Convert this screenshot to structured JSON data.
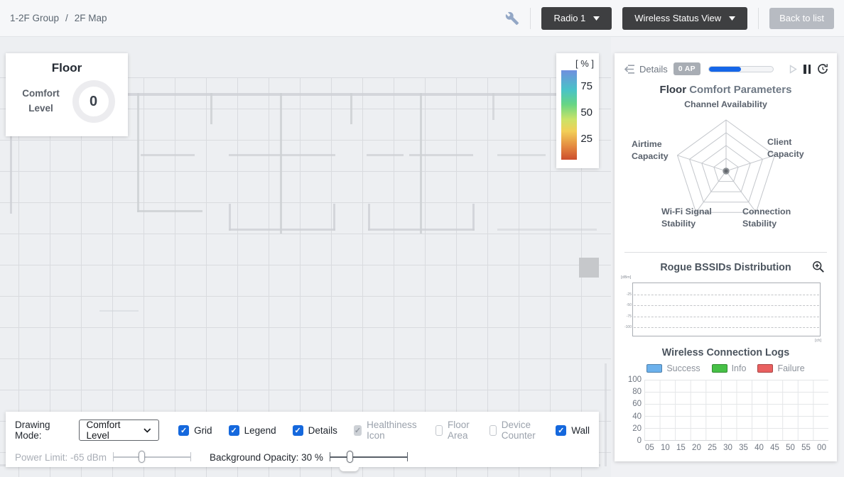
{
  "header": {
    "breadcrumb": {
      "items": [
        {
          "label": "1-2F Group"
        },
        {
          "label": "2F Map"
        }
      ],
      "separator": "/"
    },
    "radio_dropdown": {
      "value": "Radio 1"
    },
    "view_dropdown": {
      "value": "Wireless Status View"
    },
    "back_button": "Back to list"
  },
  "floor_card": {
    "title": "Floor",
    "metric_label": "Comfort Level",
    "value": "0"
  },
  "color_legend": {
    "unit": "[ % ]",
    "ticks": [
      "75",
      "50",
      "25"
    ],
    "gradient_top_to_bottom": [
      "#6f8fdf",
      "#49c3c7",
      "#66d584",
      "#cbe367",
      "#f2cf57",
      "#e3863f",
      "#cc4e2e"
    ]
  },
  "details_panel": {
    "header": {
      "back_label": "Details",
      "ap_badge": "0 AP",
      "progress_percent": 50,
      "accent_color": "#1566e8"
    },
    "comfort_title": {
      "prefix": "Floor",
      "rest": "Comfort Parameters"
    },
    "radar_axes": [
      "Channel Availability",
      "Client Capacity",
      "Connection Stability",
      "Wi-Fi Signal Stability",
      "Airtime Capacity"
    ],
    "rogue_section": {
      "title": "Rogue BSSIDs Distribution",
      "y_axis_unit": "[dBm]",
      "x_axis_unit": "[ch]",
      "y_ticks": [
        "-25",
        "-50",
        "-75",
        "-100"
      ]
    },
    "logs_section": {
      "title": "Wireless Connection Logs",
      "legend": [
        {
          "label": "Success",
          "color": "#6cb1ec"
        },
        {
          "label": "Info",
          "color": "#46c046"
        },
        {
          "label": "Failure",
          "color": "#e96060"
        }
      ],
      "y_ticks": [
        "100",
        "80",
        "60",
        "40",
        "20",
        "0"
      ],
      "x_ticks": [
        "05",
        "10",
        "15",
        "20",
        "25",
        "30",
        "35",
        "40",
        "45",
        "50",
        "55",
        "00"
      ]
    }
  },
  "toolbar": {
    "drawing_mode_label": "Drawing Mode:",
    "drawing_mode_value": "Comfort Level",
    "checkboxes": [
      {
        "label": "Grid",
        "checked": true,
        "enabled": true
      },
      {
        "label": "Legend",
        "checked": true,
        "enabled": true
      },
      {
        "label": "Details",
        "checked": true,
        "enabled": true
      },
      {
        "label": "Healthiness Icon",
        "checked": true,
        "enabled": false
      },
      {
        "label": "Floor Area",
        "checked": false,
        "enabled": false
      },
      {
        "label": "Device Counter",
        "checked": false,
        "enabled": false
      },
      {
        "label": "Wall",
        "checked": true,
        "enabled": true
      }
    ],
    "power_limit_label": "Power Limit: -65 dBm",
    "power_limit_value": "-65 dBm",
    "power_limit_enabled": false,
    "power_limit_thumb_percent": 33,
    "background_opacity_label": "Background Opacity: 30 %",
    "background_opacity_value": "30 %",
    "background_opacity_thumb_percent": 22
  },
  "chart_data": [
    {
      "type": "radar",
      "title": "Floor Comfort Parameters",
      "axes": [
        "Channel Availability",
        "Client Capacity",
        "Connection Stability",
        "Wi-Fi Signal Stability",
        "Airtime Capacity"
      ],
      "values": [
        0,
        0,
        0,
        0,
        0
      ],
      "rings": 4
    },
    {
      "type": "scatter",
      "title": "Rogue BSSIDs Distribution",
      "xlabel": "[ch]",
      "ylabel": "[dBm]",
      "y_ticks": [
        "-25",
        "-50",
        "-75",
        "-100"
      ],
      "points": [],
      "grid": "dashed-horizontal"
    },
    {
      "type": "bar",
      "title": "Wireless Connection Logs",
      "categories": [
        "05",
        "10",
        "15",
        "20",
        "25",
        "30",
        "35",
        "40",
        "45",
        "50",
        "55",
        "00"
      ],
      "series": [
        {
          "name": "Success",
          "values": []
        },
        {
          "name": "Info",
          "values": []
        },
        {
          "name": "Failure",
          "values": []
        }
      ],
      "ylim": [
        0,
        100
      ],
      "legend_position": "top"
    }
  ]
}
